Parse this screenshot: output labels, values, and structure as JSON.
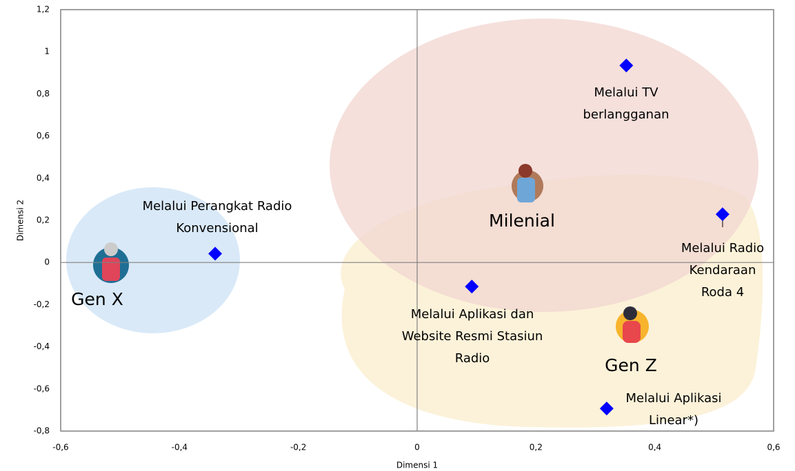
{
  "chart_data": {
    "type": "scatter",
    "x_label": "Dimensi 1",
    "y_label": "Dimensi 2",
    "x": [
      -0.34,
      0.352,
      0.514,
      0.092,
      0.319
    ],
    "values": [
      0.042,
      0.935,
      0.229,
      -0.114,
      -0.693
    ],
    "point_labels": [
      [
        "Melalui Perangkat Radio",
        "Konvensional"
      ],
      [
        "Melalui TV",
        "berlangganan"
      ],
      [
        "Melalui Radio",
        "Kendaraan",
        "Roda 4"
      ],
      [
        "Melalui Aplikasi dan",
        "Website Resmi Stasiun",
        "Radio"
      ],
      [
        "Melalui Aplikasi",
        "Linear*)"
      ]
    ],
    "color": "#0000ff",
    "marker": "diamond",
    "annotations": [
      "Gen X",
      "Milenial",
      "Gen Z"
    ],
    "xlim": [
      -0.6,
      0.6
    ],
    "ylim": [
      -0.8,
      1.2
    ],
    "xticks": [
      {
        "value": -0.6,
        "label": "-0,6"
      },
      {
        "value": -0.4,
        "label": "-0,4"
      },
      {
        "value": -0.2,
        "label": "-0,2"
      },
      0,
      {
        "value": 0.2,
        "label": "0,2"
      },
      {
        "value": 0.4,
        "label": "0,4"
      },
      {
        "value": 0.6,
        "label": "0,6"
      }
    ],
    "yticks": [
      {
        "value": -0.8,
        "label": "-0,8"
      },
      {
        "value": -0.6,
        "label": "-0,6"
      },
      {
        "value": -0.4,
        "label": "-0,4"
      },
      {
        "value": -0.2,
        "label": "-0,2"
      },
      0,
      {
        "value": 0.2,
        "label": "0,2"
      },
      {
        "value": 0.4,
        "label": "0,4"
      },
      {
        "value": 0.6,
        "label": "0,6"
      },
      {
        "value": 0.8,
        "label": "0,8"
      },
      1,
      {
        "value": 1.2,
        "label": "1,2"
      }
    ],
    "zero_lines": true,
    "grid": false
  }
}
